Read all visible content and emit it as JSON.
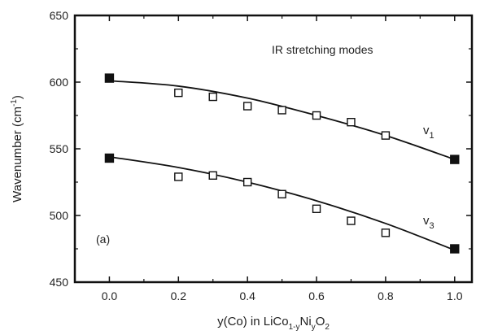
{
  "chart_data": {
    "type": "scatter",
    "panel_label": "(a)",
    "annotation": "IR stretching modes",
    "xlabel": {
      "main": "y(Co) in LiCo",
      "sub1": "1-y",
      "mid": "Ni",
      "sub2": "y",
      "mid2": "O",
      "sub3": "2"
    },
    "ylabel": {
      "main": "Wavenumber (cm",
      "sup": "-1",
      "end": ")"
    },
    "xlim": [
      -0.1,
      1.05
    ],
    "ylim": [
      450,
      650
    ],
    "x_ticks": [
      "0.0",
      "0.2",
      "0.4",
      "0.6",
      "0.8",
      "1.0"
    ],
    "y_ticks": [
      "450",
      "500",
      "550",
      "600",
      "650"
    ],
    "grid": false,
    "series": [
      {
        "name": "v1",
        "label_main": "v",
        "label_sub": "1",
        "points": [
          {
            "x": 0.0,
            "y": 603,
            "filled": true
          },
          {
            "x": 0.2,
            "y": 592,
            "filled": false
          },
          {
            "x": 0.3,
            "y": 589,
            "filled": false
          },
          {
            "x": 0.4,
            "y": 582,
            "filled": false
          },
          {
            "x": 0.5,
            "y": 579,
            "filled": false
          },
          {
            "x": 0.6,
            "y": 575,
            "filled": false
          },
          {
            "x": 0.7,
            "y": 570,
            "filled": false
          },
          {
            "x": 0.8,
            "y": 560,
            "filled": false
          },
          {
            "x": 1.0,
            "y": 542,
            "filled": true
          }
        ],
        "fit": [
          [
            0.0,
            601
          ],
          [
            0.2,
            597
          ],
          [
            0.4,
            588
          ],
          [
            0.6,
            575
          ],
          [
            0.8,
            560
          ],
          [
            1.0,
            542
          ]
        ]
      },
      {
        "name": "v3",
        "label_main": "v",
        "label_sub": "3",
        "points": [
          {
            "x": 0.0,
            "y": 543,
            "filled": true
          },
          {
            "x": 0.2,
            "y": 529,
            "filled": false
          },
          {
            "x": 0.3,
            "y": 530,
            "filled": false
          },
          {
            "x": 0.4,
            "y": 525,
            "filled": false
          },
          {
            "x": 0.5,
            "y": 516,
            "filled": false
          },
          {
            "x": 0.6,
            "y": 505,
            "filled": false
          },
          {
            "x": 0.7,
            "y": 496,
            "filled": false
          },
          {
            "x": 0.8,
            "y": 487,
            "filled": false
          },
          {
            "x": 1.0,
            "y": 475,
            "filled": true
          }
        ],
        "fit": [
          [
            0.0,
            544
          ],
          [
            0.2,
            536
          ],
          [
            0.4,
            525
          ],
          [
            0.6,
            511
          ],
          [
            0.8,
            494
          ],
          [
            1.0,
            474
          ]
        ]
      }
    ]
  }
}
